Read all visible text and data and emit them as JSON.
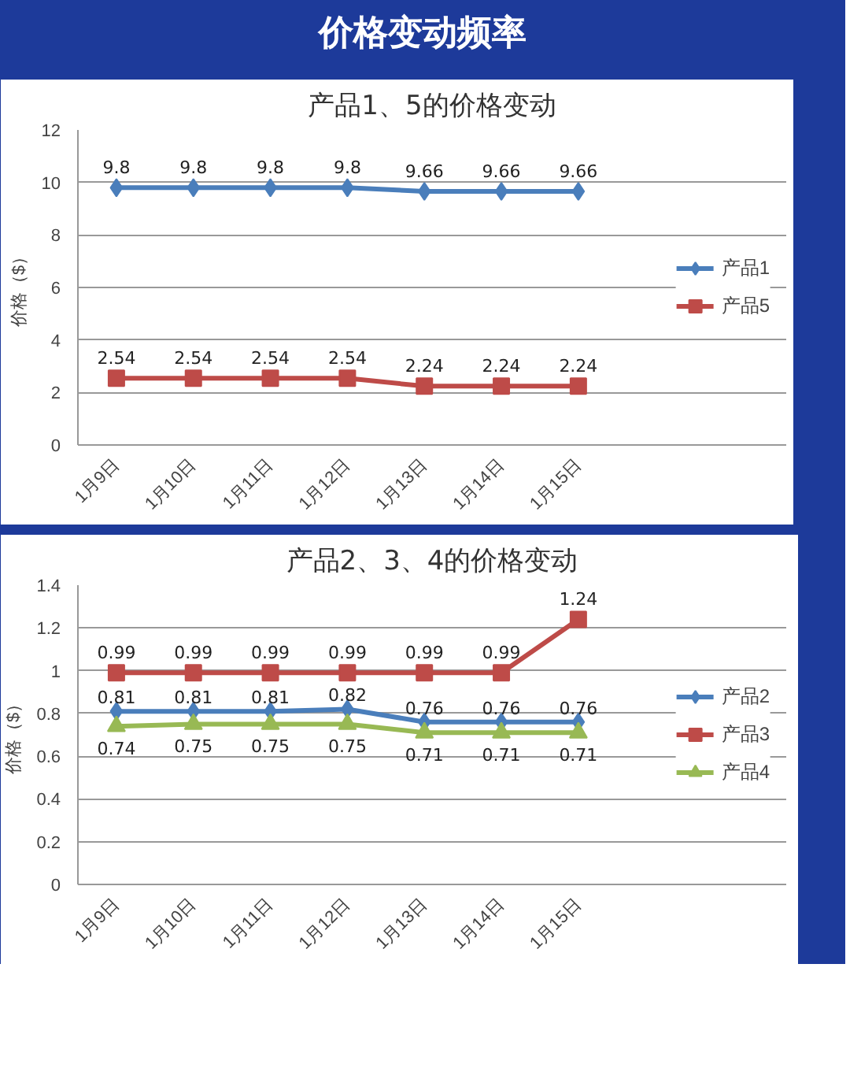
{
  "chart_data": [
    {
      "type": "line",
      "title": "产品1、5的价格变动",
      "ylabel": "价格（$）",
      "annotations": [
        "价格变动频率"
      ],
      "categories": [
        "1月9日",
        "1月10日",
        "1月11日",
        "1月12日",
        "1月13日",
        "1月14日",
        "1月15日"
      ],
      "series": [
        {
          "name": "产品1",
          "color": "#4a7ebb",
          "marker": "diamond",
          "values": [
            9.8,
            9.8,
            9.8,
            9.8,
            9.66,
            9.66,
            9.66
          ]
        },
        {
          "name": "产品5",
          "color": "#be4b48",
          "marker": "square",
          "values": [
            2.54,
            2.54,
            2.54,
            2.54,
            2.24,
            2.24,
            2.24
          ]
        }
      ],
      "ylim": [
        0,
        12
      ],
      "yticks": [
        0,
        2,
        4,
        6,
        8,
        10,
        12
      ],
      "grid": "y",
      "legend": "right",
      "data_labels": true,
      "line_style": "solid"
    },
    {
      "type": "line",
      "title": "产品2、3、4的价格变动",
      "ylabel": "价格（$）",
      "categories": [
        "1月9日",
        "1月10日",
        "1月11日",
        "1月12日",
        "1月13日",
        "1月14日",
        "1月15日"
      ],
      "series": [
        {
          "name": "产品2",
          "color": "#4a7ebb",
          "marker": "diamond",
          "values": [
            0.81,
            0.81,
            0.81,
            0.82,
            0.76,
            0.76,
            0.76
          ]
        },
        {
          "name": "产品3",
          "color": "#be4b48",
          "marker": "square",
          "values": [
            0.99,
            0.99,
            0.99,
            0.99,
            0.99,
            0.99,
            1.24
          ]
        },
        {
          "name": "产品4",
          "color": "#98b954",
          "marker": "triangle",
          "values": [
            0.74,
            0.75,
            0.75,
            0.75,
            0.71,
            0.71,
            0.71
          ]
        }
      ],
      "ylim": [
        0,
        1.4
      ],
      "yticks": [
        0,
        0.2,
        0.4,
        0.6,
        0.8,
        1,
        1.2,
        1.4
      ],
      "grid": "y",
      "legend": "right",
      "data_labels": true,
      "line_style": "solid"
    }
  ]
}
